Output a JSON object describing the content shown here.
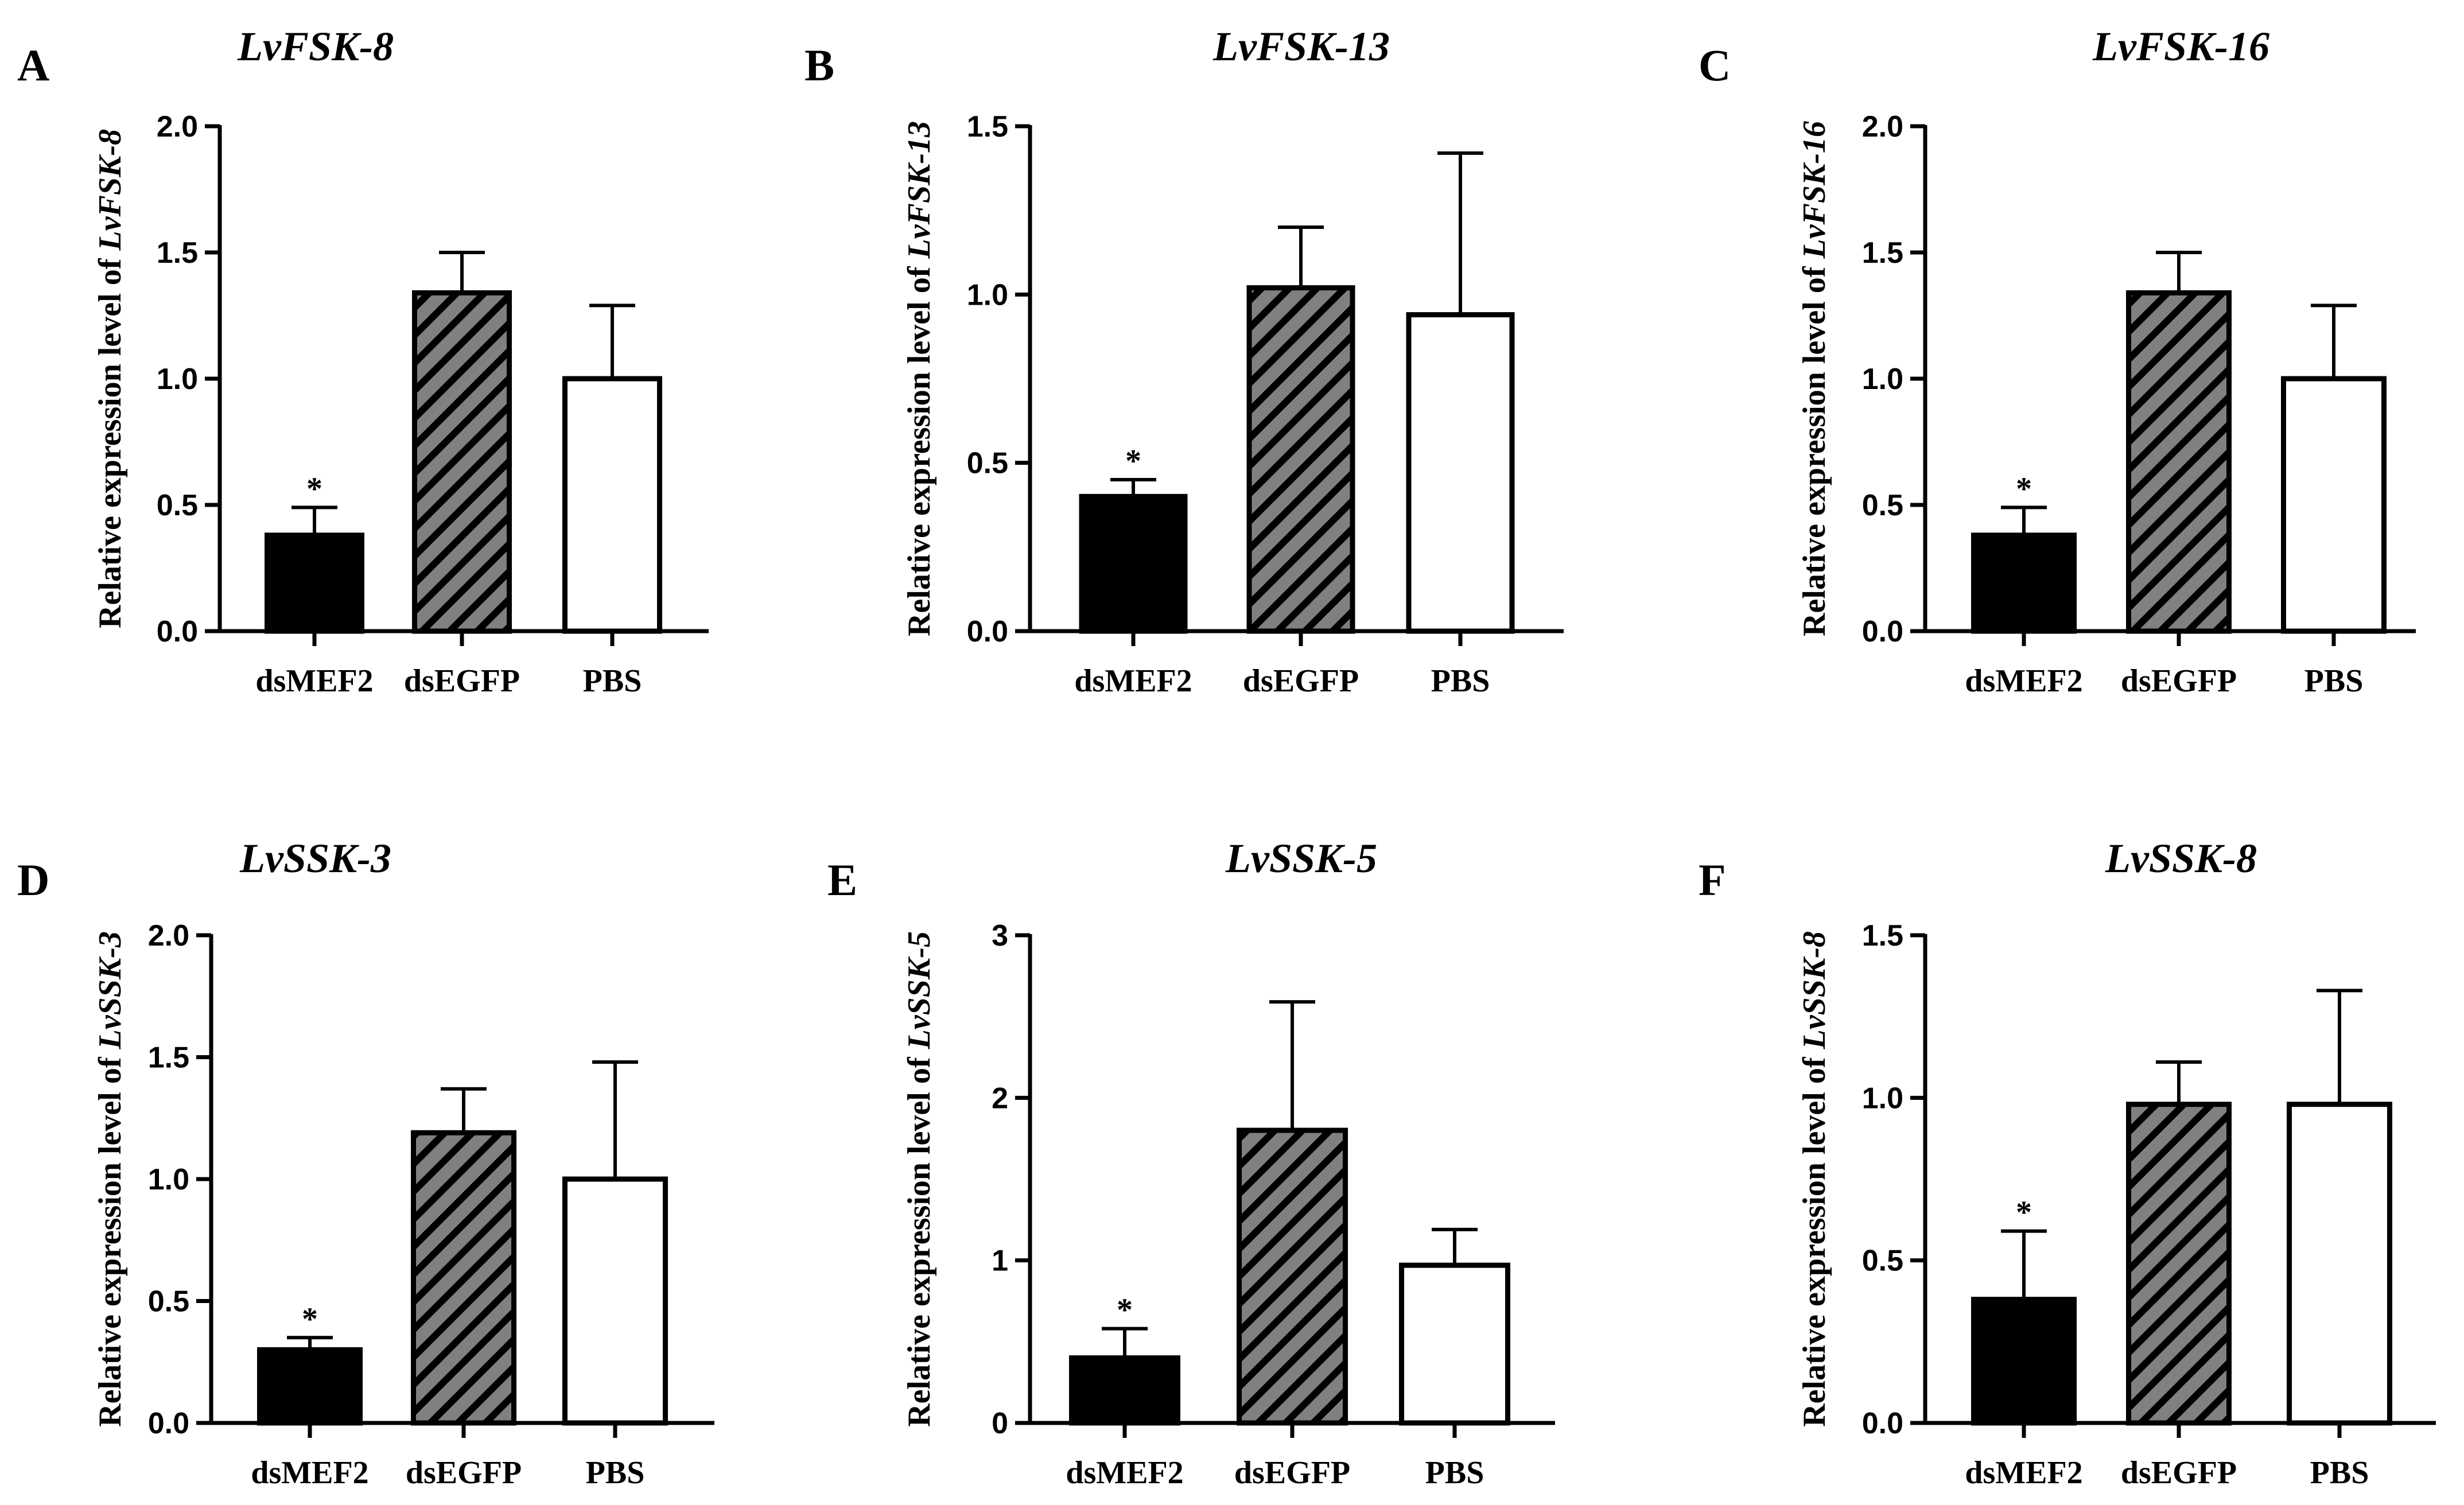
{
  "colors": {
    "black_bar": "#000000",
    "hatch_bar": "#808080",
    "hatch_line": "#000000",
    "open_bar": "#ffffff",
    "axis": "#000000"
  },
  "chart_data": [
    {
      "type": "bar",
      "panel": "A",
      "title": "LvFSK-8",
      "ylabel_prefix": "Relative expression level of ",
      "ylabel_gene": "LvFSK-8",
      "categories": [
        "dsMEF2",
        "dsEGFP",
        "PBS"
      ],
      "values": [
        0.38,
        1.34,
        1.0
      ],
      "errors": [
        0.11,
        0.16,
        0.29
      ],
      "significance": [
        "*",
        "",
        ""
      ],
      "ylim": [
        0,
        2.0
      ],
      "yticks": [
        "0.0",
        "0.5",
        "1.0",
        "1.5",
        "2.0"
      ],
      "ytick_values": [
        0,
        0.5,
        1.0,
        1.5,
        2.0
      ]
    },
    {
      "type": "bar",
      "panel": "B",
      "title": "LvFSK-13",
      "ylabel_prefix": "Relative expression level of ",
      "ylabel_gene": "LvFSK-13",
      "categories": [
        "dsMEF2",
        "dsEGFP",
        "PBS"
      ],
      "values": [
        0.4,
        1.02,
        0.94
      ],
      "errors": [
        0.05,
        0.18,
        0.48
      ],
      "significance": [
        "*",
        "",
        ""
      ],
      "ylim": [
        0,
        1.5
      ],
      "yticks": [
        "0.0",
        "0.5",
        "1.0",
        "1.5"
      ],
      "ytick_values": [
        0,
        0.5,
        1.0,
        1.5
      ]
    },
    {
      "type": "bar",
      "panel": "C",
      "title": "LvFSK-16",
      "ylabel_prefix": "Relative expression level of ",
      "ylabel_gene": "LvFSK-16",
      "categories": [
        "dsMEF2",
        "dsEGFP",
        "PBS"
      ],
      "values": [
        0.38,
        1.34,
        1.0
      ],
      "errors": [
        0.11,
        0.16,
        0.29
      ],
      "significance": [
        "*",
        "",
        ""
      ],
      "ylim": [
        0,
        2.0
      ],
      "yticks": [
        "0.0",
        "0.5",
        "1.0",
        "1.5",
        "2.0"
      ],
      "ytick_values": [
        0,
        0.5,
        1.0,
        1.5,
        2.0
      ]
    },
    {
      "type": "bar",
      "panel": "D",
      "title": "LvSSK-3",
      "ylabel_prefix": "Relative expression level of ",
      "ylabel_gene": "LvSSK-3",
      "categories": [
        "dsMEF2",
        "dsEGFP",
        "PBS"
      ],
      "values": [
        0.3,
        1.19,
        1.0
      ],
      "errors": [
        0.05,
        0.18,
        0.48
      ],
      "significance": [
        "*",
        "",
        ""
      ],
      "ylim": [
        0,
        2.0
      ],
      "yticks": [
        "0.0",
        "0.5",
        "1.0",
        "1.5",
        "2.0"
      ],
      "ytick_values": [
        0,
        0.5,
        1.0,
        1.5,
        2.0
      ]
    },
    {
      "type": "bar",
      "panel": "E",
      "title": "LvSSK-5",
      "ylabel_prefix": "Relative expression level of ",
      "ylabel_gene": "LvSSK-5",
      "categories": [
        "dsMEF2",
        "dsEGFP",
        "PBS"
      ],
      "values": [
        0.4,
        1.8,
        0.97
      ],
      "errors": [
        0.18,
        0.79,
        0.22
      ],
      "significance": [
        "*",
        "",
        ""
      ],
      "ylim": [
        0,
        3
      ],
      "yticks": [
        "0",
        "1",
        "2",
        "3"
      ],
      "ytick_values": [
        0,
        1,
        2,
        3
      ]
    },
    {
      "type": "bar",
      "panel": "F",
      "title": "LvSSK-8",
      "ylabel_prefix": "Relative expression level of ",
      "ylabel_gene": "LvSSK-8",
      "categories": [
        "dsMEF2",
        "dsEGFP",
        "PBS"
      ],
      "values": [
        0.38,
        0.98,
        0.98
      ],
      "errors": [
        0.21,
        0.13,
        0.35
      ],
      "significance": [
        "*",
        "",
        ""
      ],
      "ylim": [
        0,
        1.5
      ],
      "yticks": [
        "0.0",
        "0.5",
        "1.0",
        "1.5"
      ],
      "ytick_values": [
        0,
        0.5,
        1.0,
        1.5
      ]
    }
  ]
}
